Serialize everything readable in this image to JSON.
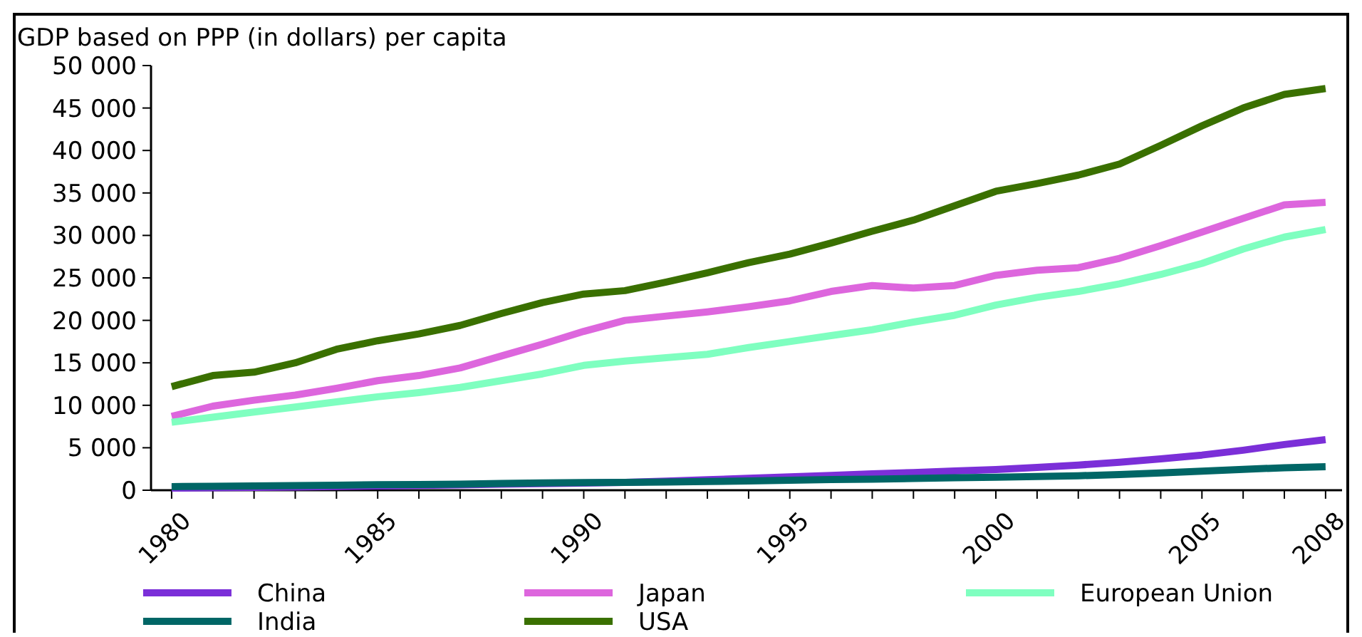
{
  "chart_data": {
    "type": "line",
    "title": "GDP based on PPP (in dollars) per capita",
    "x": [
      1980,
      1981,
      1982,
      1983,
      1984,
      1985,
      1986,
      1987,
      1988,
      1989,
      1990,
      1991,
      1992,
      1993,
      1994,
      1995,
      1996,
      1997,
      1998,
      1999,
      2000,
      2001,
      2002,
      2003,
      2004,
      2005,
      2006,
      2007,
      2008
    ],
    "series": [
      {
        "name": "China",
        "color": "#7b2fd8",
        "values": [
          250,
          290,
          330,
          380,
          440,
          510,
          560,
          630,
          710,
          780,
          830,
          920,
          1060,
          1230,
          1410,
          1580,
          1750,
          1920,
          2080,
          2260,
          2440,
          2690,
          2960,
          3290,
          3690,
          4140,
          4710,
          5380,
          5960
        ]
      },
      {
        "name": "Japan",
        "color": "#dd66dd",
        "values": [
          8700,
          9900,
          10600,
          11200,
          12000,
          12900,
          13500,
          14400,
          15800,
          17200,
          18700,
          20000,
          20500,
          21000,
          21600,
          22300,
          23400,
          24100,
          23800,
          24100,
          25300,
          25900,
          26200,
          27300,
          28800,
          30400,
          32000,
          33600,
          33900
        ]
      },
      {
        "name": "European Union",
        "color": "#7fffc0",
        "values": [
          8000,
          8600,
          9200,
          9800,
          10400,
          11000,
          11500,
          12100,
          12900,
          13700,
          14700,
          15200,
          15600,
          16000,
          16800,
          17500,
          18200,
          18900,
          19800,
          20600,
          21800,
          22700,
          23400,
          24300,
          25400,
          26700,
          28400,
          29800,
          30700
        ]
      },
      {
        "name": "India",
        "color": "#006666",
        "values": [
          420,
          470,
          510,
          550,
          590,
          640,
          680,
          720,
          790,
          850,
          900,
          920,
          960,
          1020,
          1090,
          1170,
          1260,
          1300,
          1380,
          1470,
          1530,
          1620,
          1700,
          1850,
          2030,
          2240,
          2460,
          2650,
          2760
        ]
      },
      {
        "name": "USA",
        "color": "#3a7000",
        "values": [
          12200,
          13500,
          13900,
          15000,
          16600,
          17600,
          18400,
          19400,
          20800,
          22100,
          23100,
          23500,
          24500,
          25600,
          26800,
          27800,
          29100,
          30500,
          31800,
          33500,
          35200,
          36100,
          37100,
          38400,
          40600,
          42900,
          45000,
          46600,
          47300
        ]
      }
    ],
    "xlim": [
      1979.5,
      2008.4
    ],
    "xticks": [
      1980,
      {
        "value": 1981,
        "label": null
      },
      {
        "value": 1982,
        "label": null
      },
      {
        "value": 1983,
        "label": null
      },
      {
        "value": 1984,
        "label": null
      },
      1985,
      {
        "value": 1986,
        "label": null
      },
      {
        "value": 1987,
        "label": null
      },
      {
        "value": 1988,
        "label": null
      },
      {
        "value": 1989,
        "label": null
      },
      1990,
      {
        "value": 1991,
        "label": null
      },
      {
        "value": 1992,
        "label": null
      },
      {
        "value": 1993,
        "label": null
      },
      {
        "value": 1994,
        "label": null
      },
      1995,
      {
        "value": 1996,
        "label": null
      },
      {
        "value": 1997,
        "label": null
      },
      {
        "value": 1998,
        "label": null
      },
      {
        "value": 1999,
        "label": null
      },
      2000,
      {
        "value": 2001,
        "label": null
      },
      {
        "value": 2002,
        "label": null
      },
      {
        "value": 2003,
        "label": null
      },
      {
        "value": 2004,
        "label": null
      },
      2005,
      {
        "value": 2006,
        "label": null
      },
      {
        "value": 2007,
        "label": null
      },
      2008
    ],
    "ylim": [
      0,
      50000
    ],
    "yticks": [
      0,
      {
        "value": 5000,
        "label": "5 000"
      },
      {
        "value": 10000,
        "label": "10 000"
      },
      {
        "value": 15000,
        "label": "15 000"
      },
      {
        "value": 20000,
        "label": "20 000"
      },
      {
        "value": 25000,
        "label": "25 000"
      },
      {
        "value": 30000,
        "label": "30 000"
      },
      {
        "value": 35000,
        "label": "35 000"
      },
      {
        "value": 40000,
        "label": "40 000"
      },
      {
        "value": 45000,
        "label": "45 000"
      },
      {
        "value": 50000,
        "label": "50 000"
      }
    ],
    "grid": false,
    "legend": "bottom",
    "marker": "none",
    "line_style": "solid"
  }
}
